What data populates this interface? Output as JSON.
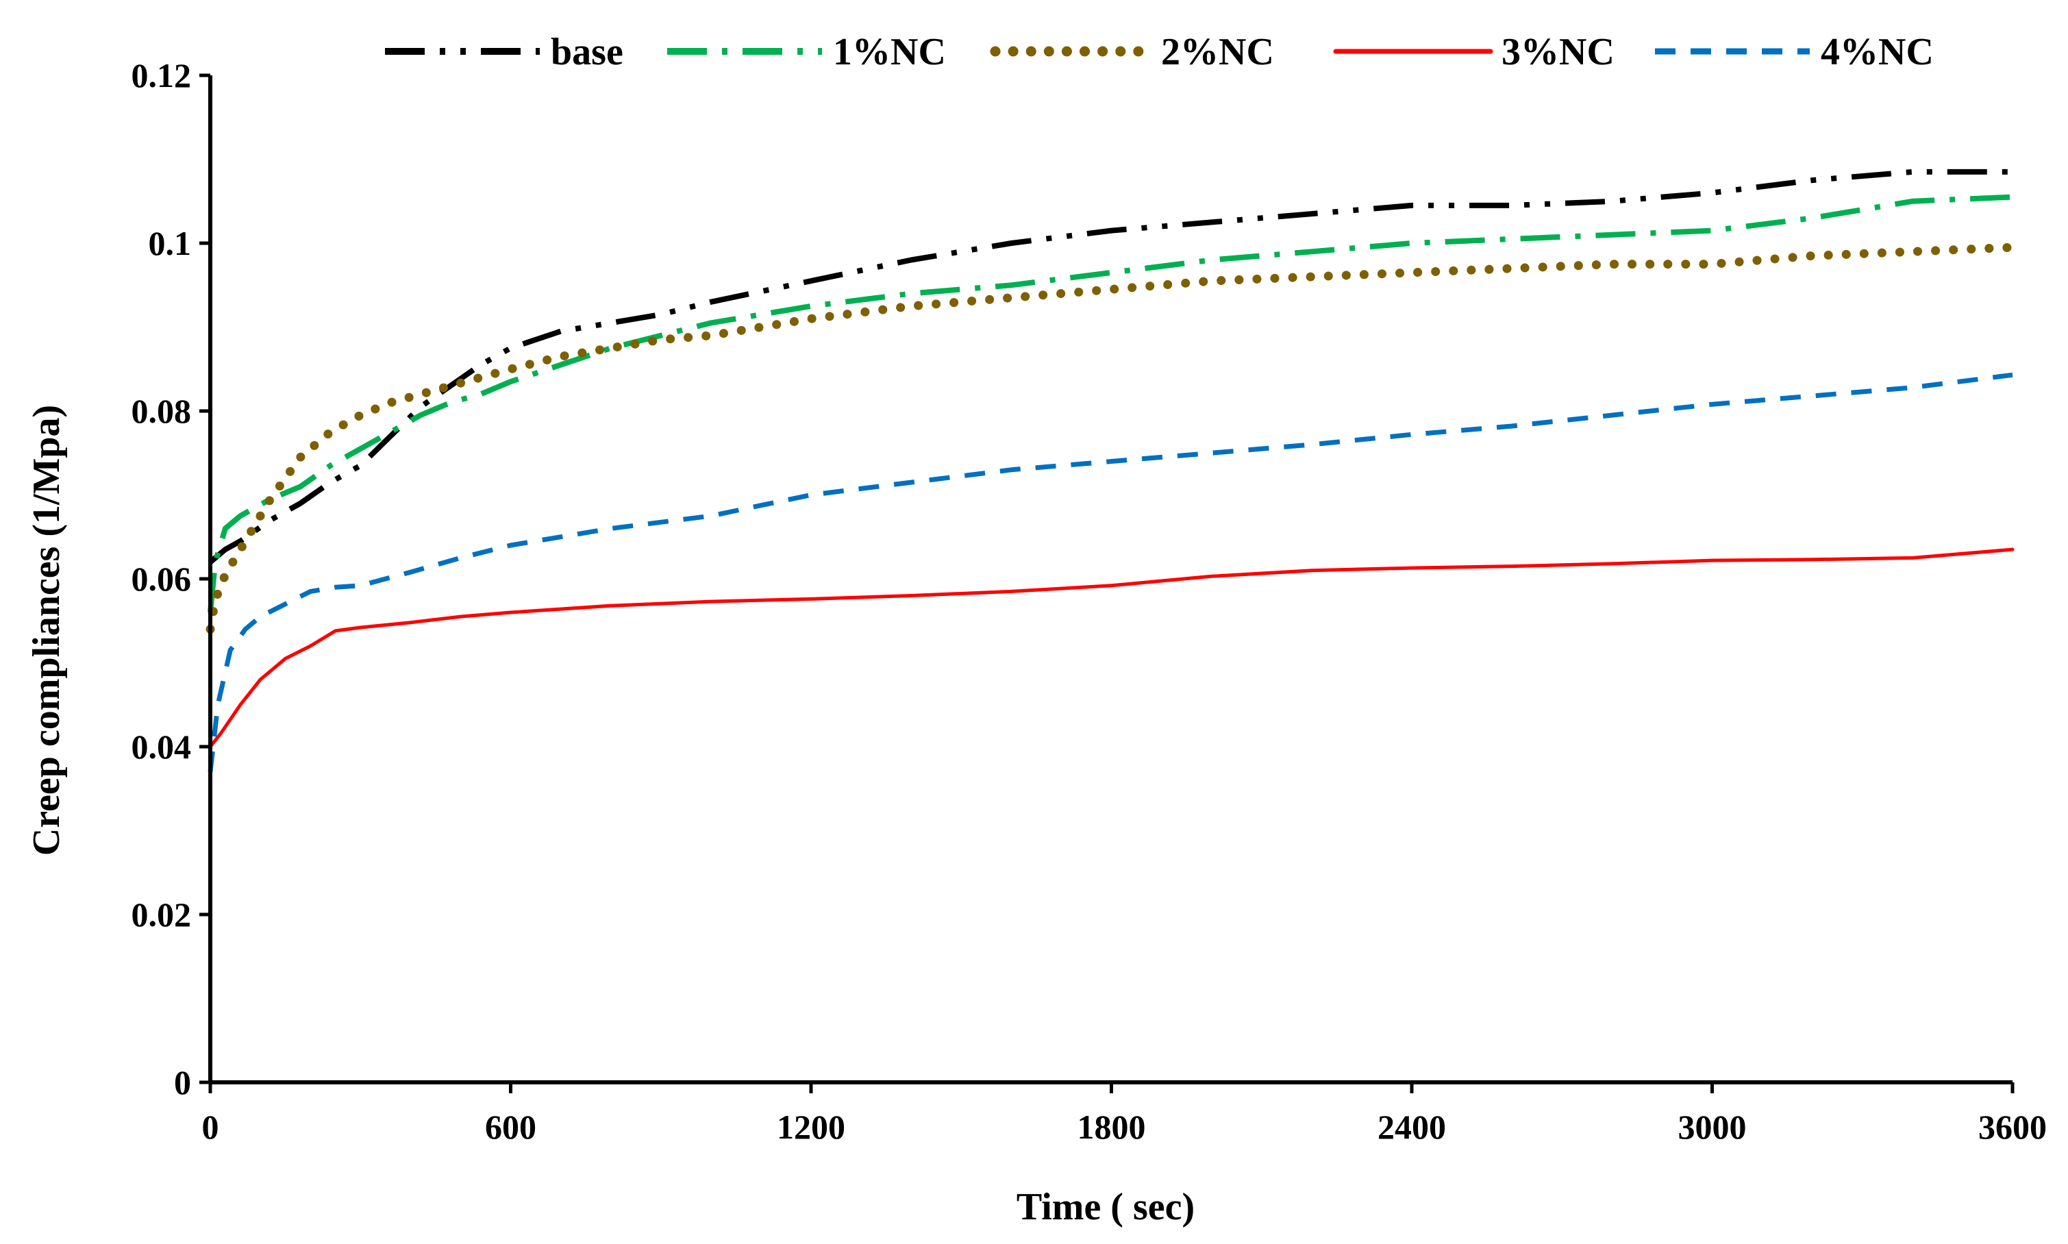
{
  "chart_data": {
    "type": "line",
    "title": "",
    "xlabel": "Time ( sec)",
    "ylabel": "Creep compliances (1/Mpa)",
    "xlim": [
      0,
      3600
    ],
    "ylim": [
      0,
      0.12
    ],
    "xticks": [
      0,
      600,
      1200,
      1800,
      2400,
      3000,
      3600
    ],
    "yticks": [
      0,
      0.02,
      0.04,
      0.06,
      0.08,
      0.1,
      0.12
    ],
    "xtick_labels": [
      "0",
      "600",
      "1200",
      "1800",
      "2400",
      "3000",
      "3600"
    ],
    "ytick_labels": [
      "0",
      "0.02",
      "0.04",
      "0.06",
      "0.08",
      "0.1",
      "0.12"
    ],
    "grid": false,
    "legend_position": "top",
    "series": [
      {
        "name": "base",
        "color": "#000000",
        "style": "dash-dot-dot",
        "x": [
          0,
          30,
          60,
          120,
          180,
          240,
          300,
          360,
          420,
          480,
          540,
          600,
          700,
          800,
          900,
          1000,
          1200,
          1400,
          1600,
          1800,
          2000,
          2200,
          2400,
          2600,
          2800,
          3000,
          3200,
          3400,
          3600
        ],
        "y": [
          0.062,
          0.0635,
          0.0645,
          0.067,
          0.069,
          0.0715,
          0.0735,
          0.077,
          0.0805,
          0.083,
          0.0855,
          0.0875,
          0.0895,
          0.0905,
          0.0915,
          0.093,
          0.0955,
          0.098,
          0.1,
          0.1015,
          0.1025,
          0.1035,
          0.1045,
          0.1045,
          0.105,
          0.106,
          0.1075,
          0.1085,
          0.1085
        ]
      },
      {
        "name": "1%NC",
        "color": "#00b050",
        "style": "dash-dot",
        "x": [
          0,
          10,
          30,
          60,
          120,
          180,
          240,
          300,
          360,
          420,
          480,
          540,
          600,
          700,
          800,
          900,
          1000,
          1200,
          1400,
          1600,
          1800,
          2000,
          2200,
          2400,
          2600,
          2800,
          3000,
          3200,
          3400,
          3600
        ],
        "y": [
          0.056,
          0.062,
          0.066,
          0.0675,
          0.0695,
          0.071,
          0.0735,
          0.0755,
          0.0775,
          0.0795,
          0.081,
          0.082,
          0.0835,
          0.0855,
          0.0875,
          0.089,
          0.0905,
          0.0925,
          0.094,
          0.095,
          0.0965,
          0.098,
          0.099,
          0.1,
          0.1005,
          0.101,
          0.1015,
          0.103,
          0.105,
          0.1055
        ]
      },
      {
        "name": "2%NC",
        "color": "#7f6000",
        "style": "dotted",
        "x": [
          0,
          10,
          30,
          60,
          120,
          180,
          240,
          300,
          360,
          420,
          480,
          540,
          600,
          700,
          800,
          900,
          1000,
          1200,
          1400,
          1600,
          1800,
          2000,
          2200,
          2400,
          2600,
          2800,
          3000,
          3200,
          3400,
          3600
        ],
        "y": [
          0.054,
          0.0575,
          0.0605,
          0.0635,
          0.0695,
          0.0745,
          0.0775,
          0.0795,
          0.081,
          0.082,
          0.083,
          0.084,
          0.085,
          0.0865,
          0.0875,
          0.0885,
          0.089,
          0.091,
          0.0925,
          0.0935,
          0.0945,
          0.0955,
          0.096,
          0.0965,
          0.097,
          0.0975,
          0.0975,
          0.0985,
          0.099,
          0.0995
        ]
      },
      {
        "name": "3%NC",
        "color": "#ff0000",
        "style": "solid",
        "x": [
          0,
          20,
          60,
          100,
          150,
          200,
          250,
          300,
          400,
          500,
          600,
          800,
          1000,
          1200,
          1400,
          1600,
          1800,
          2000,
          2200,
          2400,
          2600,
          2800,
          3000,
          3200,
          3400,
          3600
        ],
        "y": [
          0.04,
          0.0415,
          0.045,
          0.048,
          0.0505,
          0.052,
          0.0538,
          0.0542,
          0.0548,
          0.0555,
          0.056,
          0.0568,
          0.0573,
          0.0576,
          0.058,
          0.0585,
          0.0592,
          0.0603,
          0.061,
          0.0613,
          0.0615,
          0.0618,
          0.0622,
          0.0623,
          0.0625,
          0.0635
        ]
      },
      {
        "name": "4%NC",
        "color": "#0070c0",
        "style": "dashed",
        "x": [
          0,
          15,
          40,
          70,
          100,
          150,
          200,
          250,
          300,
          400,
          500,
          600,
          800,
          1000,
          1200,
          1400,
          1600,
          1800,
          2000,
          2200,
          2400,
          2600,
          2800,
          3000,
          3200,
          3400,
          3600
        ],
        "y": [
          0.037,
          0.045,
          0.0515,
          0.054,
          0.0555,
          0.057,
          0.0585,
          0.059,
          0.0592,
          0.0608,
          0.0625,
          0.064,
          0.066,
          0.0675,
          0.07,
          0.0715,
          0.073,
          0.074,
          0.075,
          0.076,
          0.0772,
          0.0782,
          0.0795,
          0.0808,
          0.0818,
          0.0828,
          0.0843
        ]
      }
    ]
  }
}
